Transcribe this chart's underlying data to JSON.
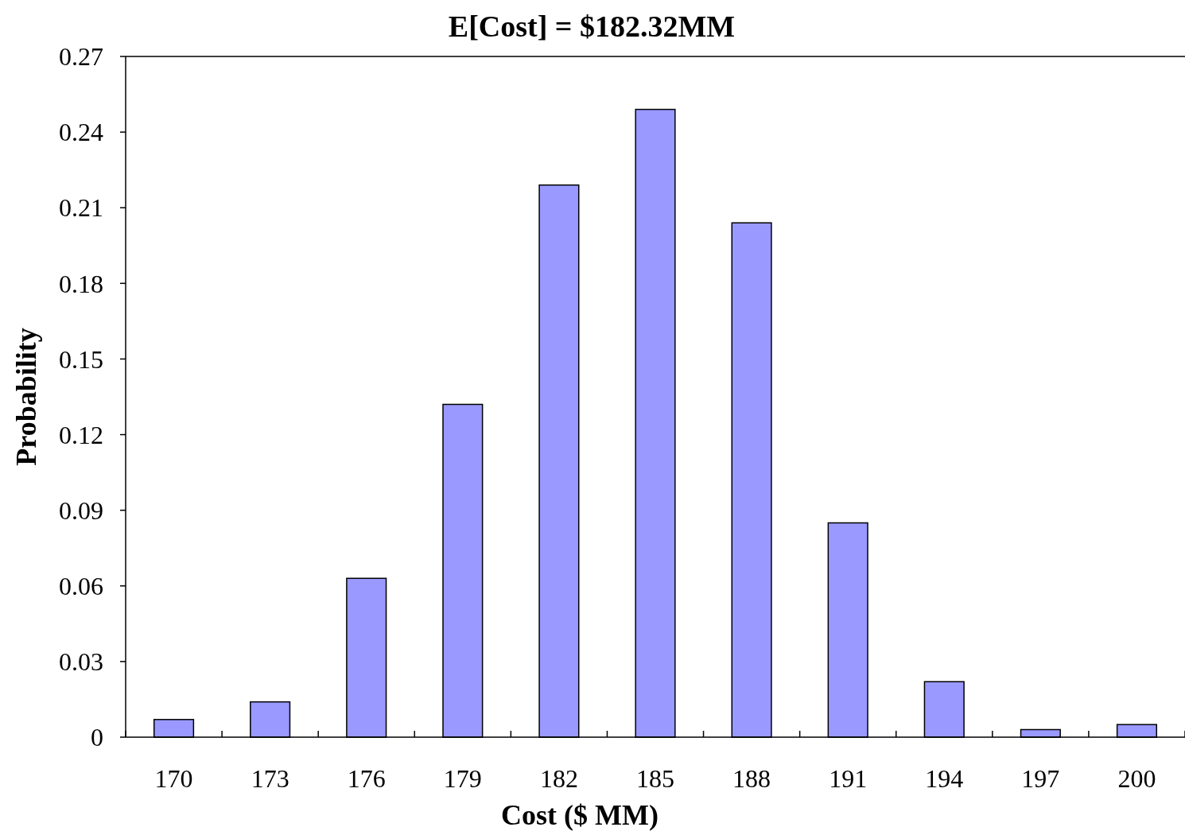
{
  "chart_data": {
    "type": "bar",
    "title": "E[Cost] = $182.32MM",
    "xlabel": "Cost ($ MM)",
    "ylabel": "Probability",
    "categories": [
      "170",
      "173",
      "176",
      "179",
      "182",
      "185",
      "188",
      "191",
      "194",
      "197",
      "200"
    ],
    "values": [
      0.007,
      0.014,
      0.063,
      0.132,
      0.219,
      0.249,
      0.204,
      0.085,
      0.022,
      0.003,
      0.005
    ],
    "color": "#9999ff",
    "ylim": [
      0,
      0.27
    ],
    "yticks": [
      0,
      0.03,
      0.06,
      0.09,
      0.12,
      0.15,
      0.18,
      0.21,
      0.24,
      0.27
    ],
    "grid": false
  }
}
